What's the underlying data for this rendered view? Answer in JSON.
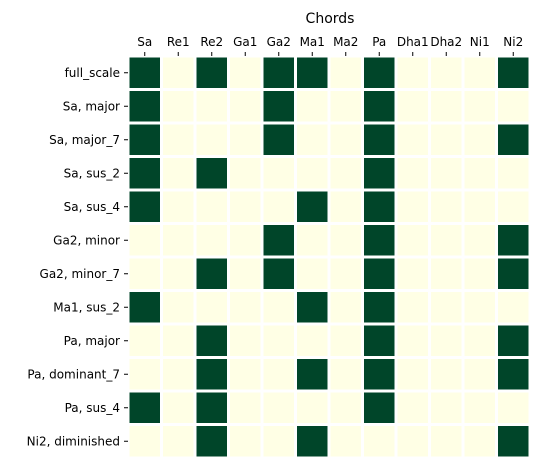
{
  "chart_data": {
    "type": "heatmap",
    "title": "Chords",
    "columns": [
      "Sa",
      "Re1",
      "Re2",
      "Ga1",
      "Ga2",
      "Ma1",
      "Ma2",
      "Pa",
      "Dha1",
      "Dha2",
      "Ni1",
      "Ni2"
    ],
    "rows": [
      "full_scale",
      "Sa, major",
      "Sa, major_7",
      "Sa, sus_2",
      "Sa, sus_4",
      "Ga2, minor",
      "Ga2, minor_7",
      "Ma1, sus_2",
      "Pa, major",
      "Pa, dominant_7",
      "Pa, sus_4",
      "Ni2, diminished"
    ],
    "values": [
      [
        1,
        0,
        1,
        0,
        1,
        1,
        0,
        1,
        0,
        0,
        0,
        1
      ],
      [
        1,
        0,
        0,
        0,
        1,
        0,
        0,
        1,
        0,
        0,
        0,
        0
      ],
      [
        1,
        0,
        0,
        0,
        1,
        0,
        0,
        1,
        0,
        0,
        0,
        1
      ],
      [
        1,
        0,
        1,
        0,
        0,
        0,
        0,
        1,
        0,
        0,
        0,
        0
      ],
      [
        1,
        0,
        0,
        0,
        0,
        1,
        0,
        1,
        0,
        0,
        0,
        0
      ],
      [
        0,
        0,
        0,
        0,
        1,
        0,
        0,
        1,
        0,
        0,
        0,
        1
      ],
      [
        0,
        0,
        1,
        0,
        1,
        0,
        0,
        1,
        0,
        0,
        0,
        1
      ],
      [
        1,
        0,
        0,
        0,
        0,
        1,
        0,
        1,
        0,
        0,
        0,
        0
      ],
      [
        0,
        0,
        1,
        0,
        0,
        0,
        0,
        1,
        0,
        0,
        0,
        1
      ],
      [
        0,
        0,
        1,
        0,
        0,
        1,
        0,
        1,
        0,
        0,
        0,
        1
      ],
      [
        1,
        0,
        1,
        0,
        0,
        0,
        0,
        1,
        0,
        0,
        0,
        0
      ],
      [
        0,
        0,
        1,
        0,
        0,
        1,
        0,
        0,
        0,
        0,
        0,
        1
      ]
    ],
    "colormap": {
      "0": "#ffffe5",
      "1": "#004529"
    },
    "cell_border_color": "#ffffff",
    "x_axis_position": "top",
    "legend": "none",
    "grid": false
  }
}
